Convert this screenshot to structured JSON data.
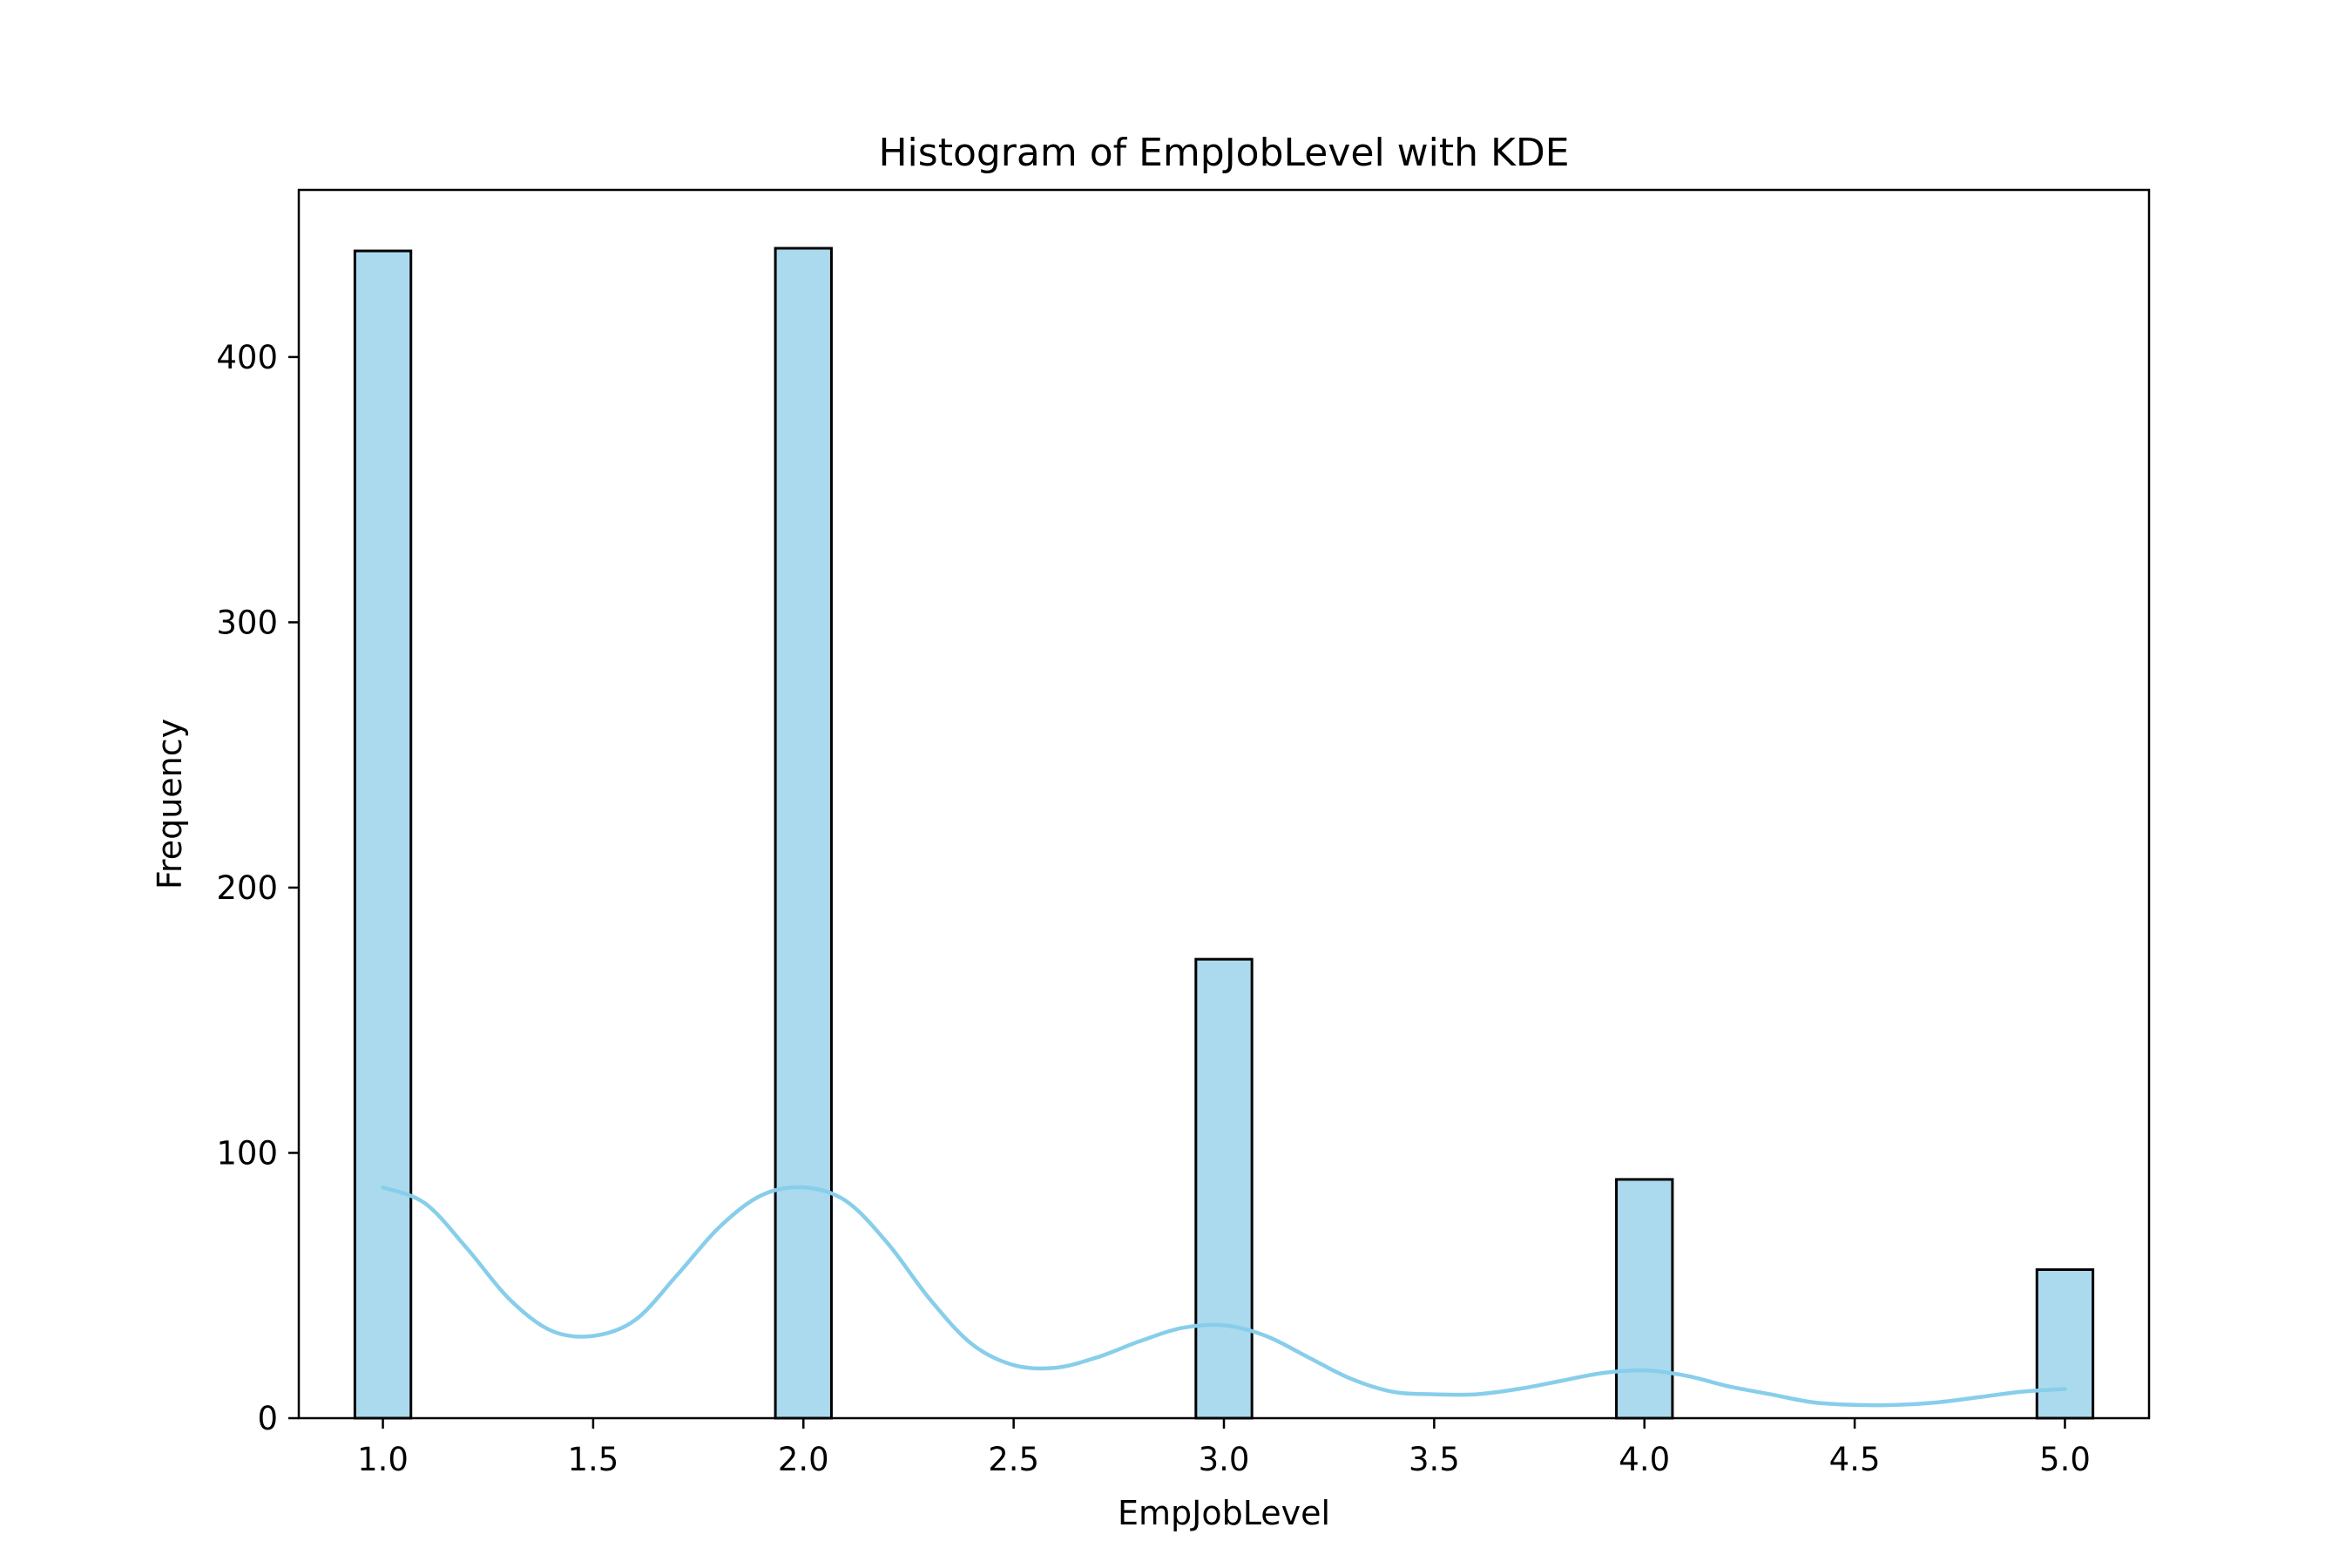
{
  "chart_data": {
    "type": "bar",
    "title": "Histogram of EmpJobLevel with KDE",
    "xlabel": "EmpJobLevel",
    "ylabel": "Frequency",
    "xlim": [
      0.8,
      5.2
    ],
    "ylim": [
      0,
      463
    ],
    "xticks": [
      1.0,
      1.5,
      2.0,
      2.5,
      3.0,
      3.5,
      4.0,
      4.5,
      5.0
    ],
    "xtick_labels": [
      "1.0",
      "1.5",
      "2.0",
      "2.5",
      "3.0",
      "3.5",
      "4.0",
      "4.5",
      "5.0"
    ],
    "yticks": [
      0,
      100,
      200,
      300,
      400
    ],
    "ytick_labels": [
      "0",
      "100",
      "200",
      "300",
      "400"
    ],
    "bar_width": 0.1333,
    "bars": [
      {
        "x": 1.0,
        "value": 440
      },
      {
        "x": 2.0,
        "value": 441
      },
      {
        "x": 3.0,
        "value": 173
      },
      {
        "x": 4.0,
        "value": 90
      },
      {
        "x": 5.0,
        "value": 56
      }
    ],
    "kde": {
      "x": [
        1.0,
        1.1,
        1.2,
        1.3,
        1.4,
        1.5,
        1.6,
        1.7,
        1.8,
        1.9,
        2.0,
        2.1,
        2.2,
        2.3,
        2.4,
        2.5,
        2.6,
        2.7,
        2.8,
        2.9,
        3.0,
        3.1,
        3.2,
        3.3,
        3.4,
        3.5,
        3.6,
        3.7,
        3.8,
        3.9,
        4.0,
        4.1,
        4.2,
        4.3,
        4.4,
        4.5,
        4.6,
        4.7,
        4.8,
        4.9,
        5.0
      ],
      "y": [
        87,
        81,
        64,
        45,
        33,
        31,
        37,
        54,
        72,
        84,
        87,
        82,
        66,
        45,
        28,
        20,
        19,
        23,
        29,
        34,
        35,
        31,
        23,
        15,
        10,
        9,
        9,
        11,
        14,
        17,
        18,
        16,
        12,
        9,
        6,
        5,
        5,
        6,
        8,
        10,
        11
      ]
    },
    "colors": {
      "bar_fill": "#abdaee",
      "bar_edge": "#000000",
      "kde_line": "#87ceeb"
    },
    "grid": false,
    "legend": "none"
  }
}
